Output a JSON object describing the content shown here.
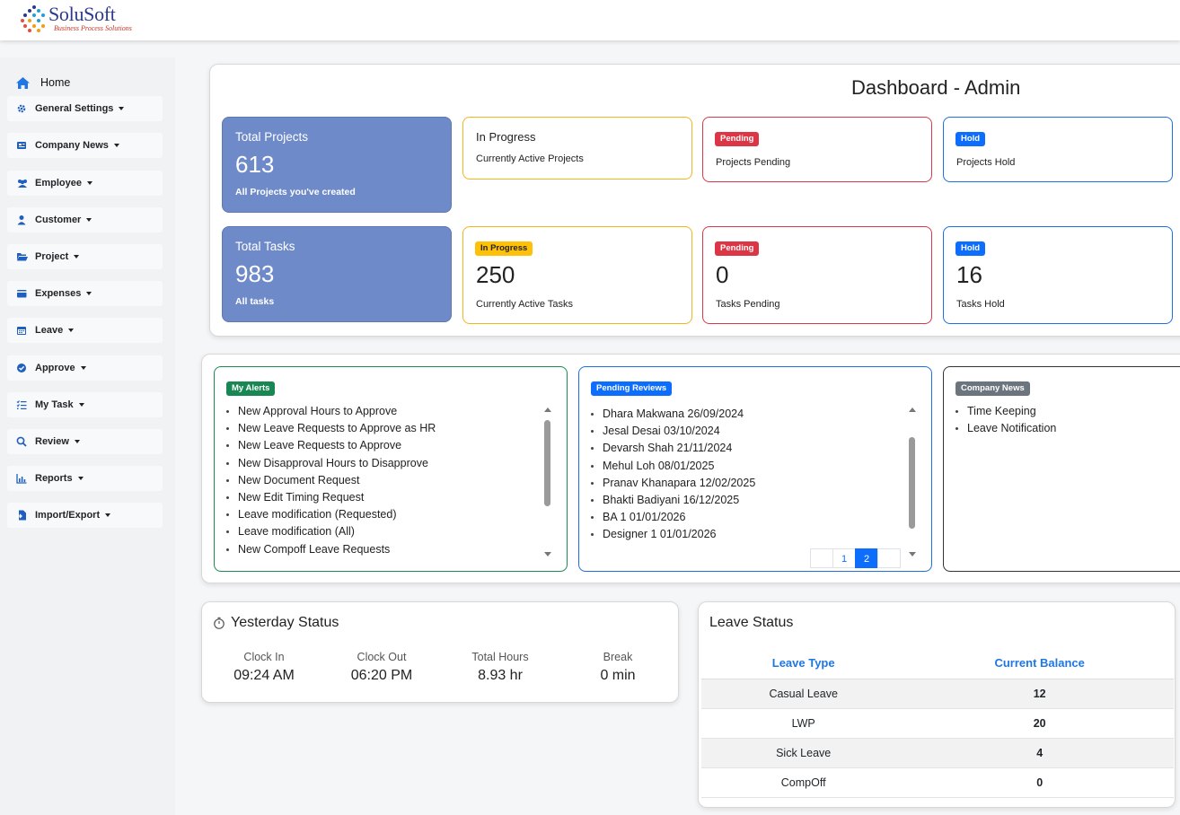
{
  "brand": {
    "name": "SoluSoft",
    "tagline": "Business Process Solutions"
  },
  "sidebar": {
    "home": "Home",
    "items": [
      {
        "label": "General Settings",
        "icon": "gear-icon"
      },
      {
        "label": "Company News",
        "icon": "newspaper-icon"
      },
      {
        "label": "Employee",
        "icon": "users-icon"
      },
      {
        "label": "Customer",
        "icon": "user-icon"
      },
      {
        "label": "Project",
        "icon": "folder-open-icon"
      },
      {
        "label": "Expenses",
        "icon": "wallet-icon"
      },
      {
        "label": "Leave",
        "icon": "calendar-icon"
      },
      {
        "label": "Approve",
        "icon": "check-circle-icon"
      },
      {
        "label": "My Task",
        "icon": "checklist-icon"
      },
      {
        "label": "Review",
        "icon": "search-icon"
      },
      {
        "label": "Reports",
        "icon": "chart-icon"
      },
      {
        "label": "Import/Export",
        "icon": "file-import-icon"
      }
    ]
  },
  "dashboard": {
    "title": "Dashboard - Admin",
    "projects": {
      "total_label": "Total Projects",
      "total_value": "613",
      "total_sub": "All Projects you've created",
      "inprogress_title": "In Progress",
      "inprogress_sub": "Currently Active Projects",
      "pending_badge": "Pending",
      "pending_sub": "Projects Pending",
      "hold_badge": "Hold",
      "hold_sub": "Projects Hold"
    },
    "tasks": {
      "total_label": "Total Tasks",
      "total_value": "983",
      "total_sub": "All tasks",
      "inprogress_badge": "In Progress",
      "inprogress_value": "250",
      "inprogress_sub": "Currently Active Tasks",
      "pending_badge": "Pending",
      "pending_value": "0",
      "pending_sub": "Tasks Pending",
      "hold_badge": "Hold",
      "hold_value": "16",
      "hold_sub": "Tasks Hold"
    }
  },
  "alerts": {
    "badge": "My Alerts",
    "items": [
      "New Approval Hours to Approve",
      "New Leave Requests to Approve as HR",
      "New Leave Requests to Approve",
      "New Disapproval Hours to Disapprove",
      "New Document Request",
      "New Edit Timing Request",
      "Leave modification (Requested)",
      "Leave modification (All)",
      "New Compoff Leave Requests"
    ]
  },
  "reviews": {
    "badge": "Pending Reviews",
    "items": [
      "Dhara Makwana 26/09/2024",
      "Jesal Desai 03/10/2024",
      "Devarsh Shah 21/11/2024",
      "Mehul Loh 08/01/2025",
      "Pranav Khanapara 12/02/2025",
      "Bhakti Badiyani 16/12/2025",
      "BA 1 01/01/2026",
      "Designer 1 01/01/2026"
    ],
    "pages": [
      "",
      "1",
      "2",
      ""
    ]
  },
  "news": {
    "badge": "Company News",
    "items": [
      "Time Keeping",
      "Leave Notification"
    ]
  },
  "yesterday": {
    "title": "Yesterday Status",
    "clock_in_label": "Clock In",
    "clock_in": "09:24 AM",
    "clock_out_label": "Clock Out",
    "clock_out": "06:20 PM",
    "total_label": "Total Hours",
    "total": "8.93 hr",
    "break_label": "Break",
    "break": "0 min"
  },
  "leave": {
    "title": "Leave Status",
    "col_type": "Leave Type",
    "col_balance": "Current Balance",
    "rows": [
      {
        "type": "Casual Leave",
        "balance": "12"
      },
      {
        "type": "LWP",
        "balance": "20"
      },
      {
        "type": "Sick Leave",
        "balance": "4"
      },
      {
        "type": "CompOff",
        "balance": "0"
      }
    ]
  }
}
